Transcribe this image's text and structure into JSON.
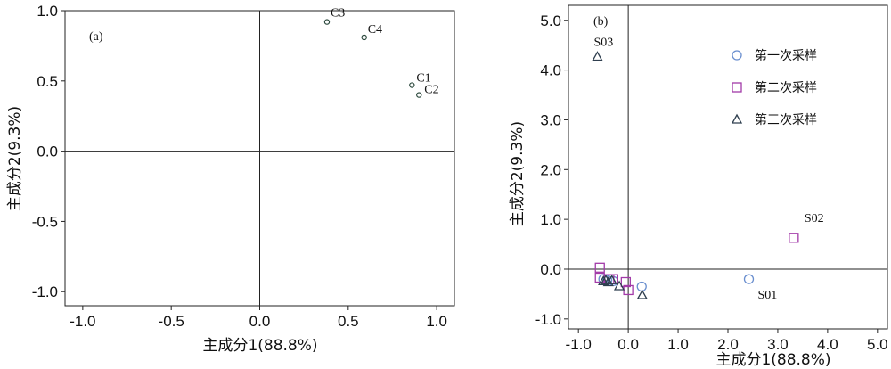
{
  "chart_data": [
    {
      "type": "scatter",
      "panel_label": "(a)",
      "xlabel": "主成分1(88.8%)",
      "ylabel": "主成分2(9.3%)",
      "xlim": [
        -1.1,
        1.1
      ],
      "ylim": [
        -1.1,
        1.0
      ],
      "xticks": [
        "-1.0",
        "-0.5",
        "0.0",
        "0.5",
        "1.0"
      ],
      "yticks": [
        "1.0",
        "0.5",
        "0.0",
        "-0.5",
        "-1.0"
      ],
      "points": [
        {
          "label": "C3",
          "x": 0.38,
          "y": 0.92
        },
        {
          "label": "C4",
          "x": 0.59,
          "y": 0.81
        },
        {
          "label": "C1",
          "x": 0.86,
          "y": 0.47
        },
        {
          "label": "C2",
          "x": 0.9,
          "y": 0.4
        }
      ]
    },
    {
      "type": "scatter",
      "panel_label": "(b)",
      "xlabel": "主成分1(88.8%)",
      "ylabel": "主成分2(9.3%)",
      "xlim": [
        -1.2,
        5.2
      ],
      "ylim": [
        -1.2,
        5.3
      ],
      "xticks": [
        "-1.0",
        "0.0",
        "1.0",
        "2.0",
        "3.0",
        "4.0",
        "5.0"
      ],
      "yticks": [
        "5.0",
        "4.0",
        "3.0",
        "2.0",
        "1.0",
        "0.0",
        "-1.0"
      ],
      "legend": [
        "第一次采样",
        "第二次采样",
        "第三次采样"
      ],
      "legend_position": "top-right",
      "series": [
        {
          "name": "第一次采样",
          "marker": "circle",
          "color": "#6a8fcf",
          "points": [
            {
              "label": "S01",
              "x": 2.42,
              "y": -0.2
            },
            {
              "label": "",
              "x": 0.27,
              "y": -0.35
            },
            {
              "label": "",
              "x": -0.42,
              "y": -0.22
            },
            {
              "label": "",
              "x": -0.3,
              "y": -0.24
            },
            {
              "label": "",
              "x": -0.5,
              "y": -0.2
            }
          ]
        },
        {
          "name": "第二次采样",
          "marker": "square",
          "color": "#a23aa8",
          "points": [
            {
              "label": "S02",
              "x": 3.32,
              "y": 0.63
            },
            {
              "label": "",
              "x": -0.57,
              "y": 0.03
            },
            {
              "label": "",
              "x": -0.57,
              "y": -0.17
            },
            {
              "label": "",
              "x": -0.38,
              "y": -0.2
            },
            {
              "label": "",
              "x": -0.3,
              "y": -0.2
            },
            {
              "label": "",
              "x": -0.05,
              "y": -0.26
            },
            {
              "label": "",
              "x": 0.0,
              "y": -0.42
            }
          ]
        },
        {
          "name": "第三次采样",
          "marker": "triangle",
          "color": "#2f3f4f",
          "points": [
            {
              "label": "S03",
              "x": -0.62,
              "y": 4.27
            },
            {
              "label": "",
              "x": 0.28,
              "y": -0.52
            },
            {
              "label": "",
              "x": -0.18,
              "y": -0.34
            },
            {
              "label": "",
              "x": -0.5,
              "y": -0.24
            },
            {
              "label": "",
              "x": -0.45,
              "y": -0.22
            },
            {
              "label": "",
              "x": -0.4,
              "y": -0.26
            },
            {
              "label": "",
              "x": -0.33,
              "y": -0.22
            }
          ]
        }
      ]
    }
  ]
}
